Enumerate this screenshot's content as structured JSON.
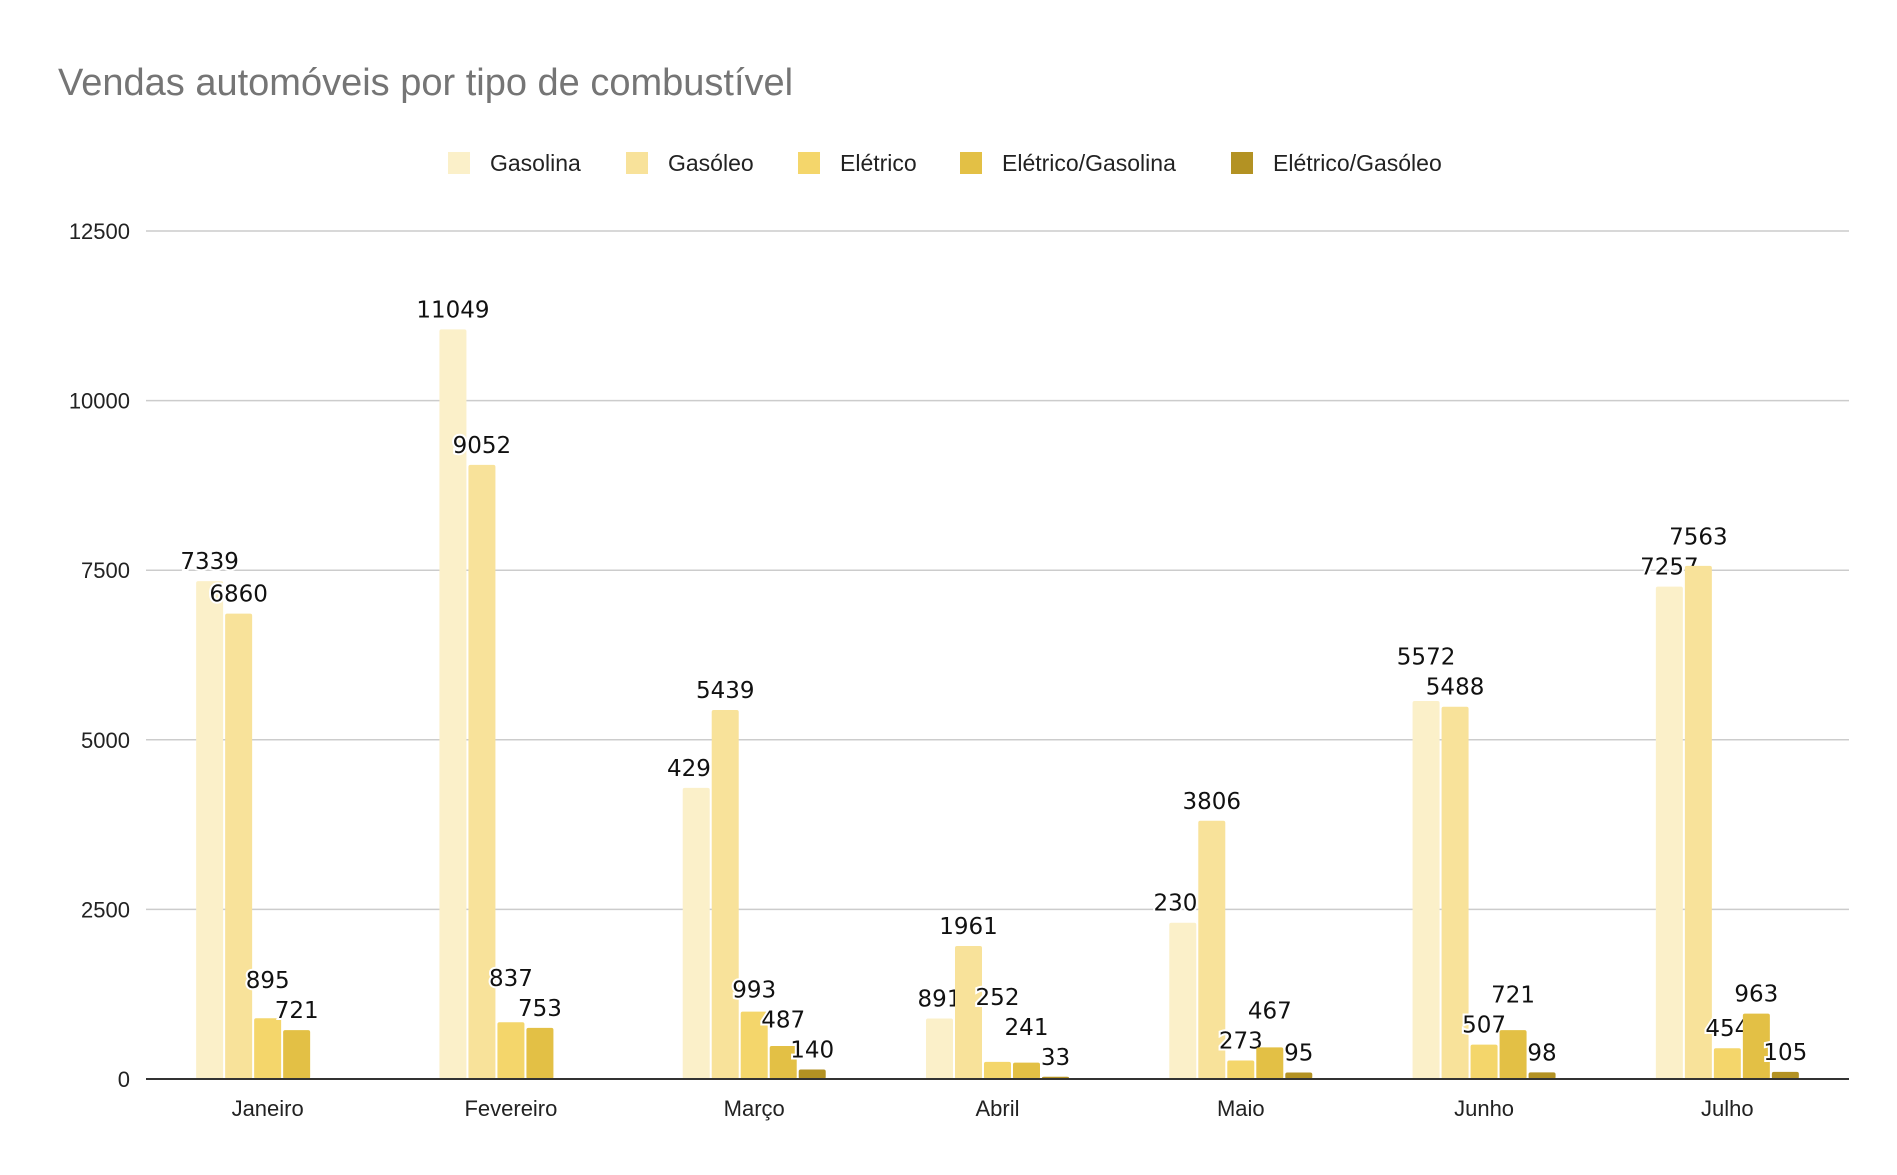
{
  "chart_data": {
    "type": "bar",
    "title": "Vendas automóveis por tipo de combustível",
    "xlabel": "",
    "ylabel": "",
    "ylim": [
      0,
      12500
    ],
    "yticks": [
      0,
      2500,
      5000,
      7500,
      10000,
      12500
    ],
    "grid": true,
    "legend_position": "top",
    "categories": [
      "Janeiro",
      "Fevereiro",
      "Março",
      "Abril",
      "Maio",
      "Junho",
      "Julho"
    ],
    "series": [
      {
        "name": "Gasolina",
        "color": "#fbf0c9",
        "values": [
          7339,
          11049,
          4292,
          891,
          2304,
          5572,
          7257
        ]
      },
      {
        "name": "Gasóleo",
        "color": "#f8e29a",
        "values": [
          6860,
          9052,
          5439,
          1961,
          3806,
          5488,
          7563
        ]
      },
      {
        "name": "Elétrico",
        "color": "#f4d66b",
        "values": [
          895,
          837,
          993,
          252,
          273,
          507,
          454
        ]
      },
      {
        "name": "Elétrico/Gasolina",
        "color": "#e3c045",
        "values": [
          721,
          753,
          487,
          241,
          467,
          721,
          963
        ]
      },
      {
        "name": "Elétrico/Gasóleo",
        "color": "#b39223",
        "values": [
          null,
          null,
          140,
          33,
          95,
          98,
          105
        ]
      }
    ]
  }
}
